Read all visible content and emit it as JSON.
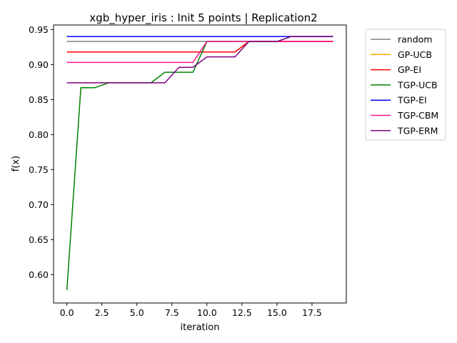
{
  "chart_data": {
    "type": "line",
    "title": "xgb_hyper_iris : Init 5 points | Replication2",
    "xlabel": "iteration",
    "ylabel": "f(x)",
    "xlim": [
      -0.95,
      19.95
    ],
    "ylim": [
      0.5595,
      0.9565
    ],
    "xticks": [
      0,
      2.5,
      5,
      7.5,
      10,
      12.5,
      15,
      17.5
    ],
    "xtick_labels": [
      "0.0",
      "2.5",
      "5.0",
      "7.5",
      "10.0",
      "12.5",
      "15.0",
      "17.5"
    ],
    "yticks": [
      0.6,
      0.65,
      0.7,
      0.75,
      0.8,
      0.85,
      0.9,
      0.95
    ],
    "ytick_labels": [
      "0.60",
      "0.65",
      "0.70",
      "0.75",
      "0.80",
      "0.85",
      "0.90",
      "0.95"
    ],
    "grid": false,
    "legend_position": "outside upper right",
    "x": [
      0,
      1,
      2,
      3,
      4,
      5,
      6,
      7,
      8,
      9,
      10,
      11,
      12,
      13,
      14,
      15,
      16,
      17,
      18,
      19
    ],
    "series": [
      {
        "name": "random",
        "color": "#808080",
        "values": [
          0.933,
          0.933,
          0.933,
          0.933,
          0.933,
          0.933,
          0.933,
          0.933,
          0.933,
          0.933,
          0.933,
          0.933,
          0.933,
          0.933,
          0.933,
          0.933,
          0.933,
          0.933,
          0.933,
          0.933
        ]
      },
      {
        "name": "GP-UCB",
        "color": "#ffa500",
        "values": [
          0.918,
          0.918,
          0.918,
          0.918,
          0.918,
          0.918,
          0.918,
          0.918,
          0.918,
          0.918,
          0.918,
          0.918,
          0.918,
          0.933,
          0.933,
          0.933,
          0.933,
          0.933,
          0.933,
          0.933
        ]
      },
      {
        "name": "GP-EI",
        "color": "#ff0000",
        "values": [
          0.918,
          0.918,
          0.918,
          0.918,
          0.918,
          0.918,
          0.918,
          0.918,
          0.918,
          0.918,
          0.918,
          0.918,
          0.918,
          0.933,
          0.933,
          0.933,
          0.933,
          0.933,
          0.933,
          0.933
        ]
      },
      {
        "name": "TGP-UCB",
        "color": "#008000",
        "values": [
          0.578,
          0.867,
          0.867,
          0.874,
          0.874,
          0.874,
          0.874,
          0.889,
          0.889,
          0.889,
          0.933,
          0.933,
          0.933,
          0.933,
          0.933,
          0.933,
          0.94,
          0.94,
          0.94,
          0.94
        ]
      },
      {
        "name": "TGP-EI",
        "color": "#0000ff",
        "values": [
          0.94,
          0.94,
          0.94,
          0.94,
          0.94,
          0.94,
          0.94,
          0.94,
          0.94,
          0.94,
          0.94,
          0.94,
          0.94,
          0.94,
          0.94,
          0.94,
          0.94,
          0.94,
          0.94,
          0.94
        ]
      },
      {
        "name": "TGP-CBM",
        "color": "#ff1493",
        "values": [
          0.903,
          0.903,
          0.903,
          0.903,
          0.903,
          0.903,
          0.903,
          0.903,
          0.903,
          0.903,
          0.933,
          0.933,
          0.933,
          0.933,
          0.933,
          0.933,
          0.933,
          0.933,
          0.933,
          0.933
        ]
      },
      {
        "name": "TGP-ERM",
        "color": "#800080",
        "values": [
          0.874,
          0.874,
          0.874,
          0.874,
          0.874,
          0.874,
          0.874,
          0.874,
          0.896,
          0.896,
          0.911,
          0.911,
          0.911,
          0.933,
          0.933,
          0.933,
          0.94,
          0.94,
          0.94,
          0.94
        ]
      }
    ]
  }
}
